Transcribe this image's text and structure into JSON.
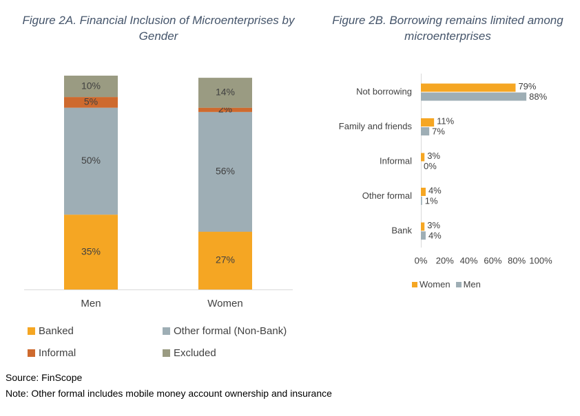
{
  "colors": {
    "banked": "#F5A623",
    "other_formal": "#9EAEB5",
    "informal": "#CE6A2E",
    "excluded": "#9A9B82",
    "women": "#F5A623",
    "men": "#9EAEB5"
  },
  "chart_data": [
    {
      "type": "bar",
      "stacked": true,
      "title": "Figure 2A. Financial Inclusion of Microenterprises by Gender",
      "categories": [
        "Men",
        "Women"
      ],
      "series": [
        {
          "name": "Banked",
          "values": [
            35,
            27
          ],
          "labels": [
            "35%",
            "27%"
          ]
        },
        {
          "name": "Other formal (Non-Bank)",
          "values": [
            50,
            56
          ],
          "labels": [
            "50%",
            "56%"
          ]
        },
        {
          "name": "Informal",
          "values": [
            5,
            2
          ],
          "labels": [
            "5%",
            "2%"
          ]
        },
        {
          "name": "Excluded",
          "values": [
            10,
            14
          ],
          "labels": [
            "10%",
            "14%"
          ]
        }
      ],
      "ylim": [
        0,
        100
      ],
      "grid": false,
      "legend": "bottom"
    },
    {
      "type": "bar",
      "orientation": "horizontal",
      "title": "Figure 2B. Borrowing remains limited among microenterprises",
      "categories": [
        "Not borrowing",
        "Family and friends",
        "Informal",
        "Other formal",
        "Bank"
      ],
      "series": [
        {
          "name": "Women",
          "values": [
            79,
            11,
            3,
            4,
            3
          ],
          "labels": [
            "79%",
            "11%",
            "3%",
            "4%",
            "3%"
          ]
        },
        {
          "name": "Men",
          "values": [
            88,
            7,
            0,
            1,
            4
          ],
          "labels": [
            "88%",
            "7%",
            "0%",
            "1%",
            "4%"
          ]
        }
      ],
      "xlim": [
        0,
        100
      ],
      "xticks": [
        "0%",
        "20%",
        "40%",
        "60%",
        "80%",
        "100%"
      ],
      "grid": false,
      "legend": "bottom"
    }
  ],
  "footer": {
    "source": "Source: FinScope",
    "note": "Note: Other formal includes mobile money account ownership and insurance"
  }
}
